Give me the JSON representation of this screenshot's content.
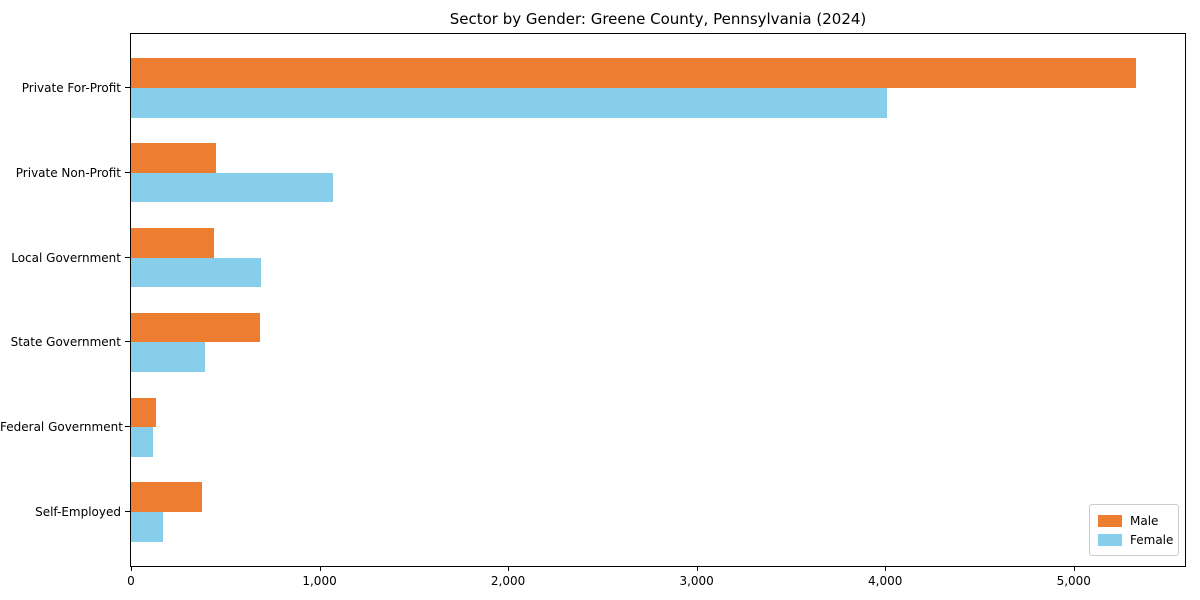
{
  "title": "Sector by Gender: Greene County, Pennsylvania (2024)",
  "chart_data": {
    "type": "bar",
    "orientation": "horizontal",
    "title": "Sector by Gender: Greene County, Pennsylvania (2024)",
    "categories": [
      "Private For-Profit",
      "Private Non-Profit",
      "Local Government",
      "State Government",
      "Federal Government",
      "Self-Employed"
    ],
    "series": [
      {
        "name": "Male",
        "color": "#ED7D31",
        "values": [
          5330,
          450,
          440,
          685,
          130,
          375
        ]
      },
      {
        "name": "Female",
        "color": "#87CEEB",
        "values": [
          4010,
          1070,
          690,
          390,
          115,
          170
        ]
      }
    ],
    "xlabel": "",
    "ylabel": "",
    "xlim": [
      0,
      5590
    ],
    "x_ticks": [
      0,
      1000,
      2000,
      3000,
      4000,
      5000
    ],
    "x_tick_labels": [
      "0",
      "1,000",
      "2,000",
      "3,000",
      "4,000",
      "5,000"
    ],
    "grid": false,
    "legend_position": "lower right"
  }
}
